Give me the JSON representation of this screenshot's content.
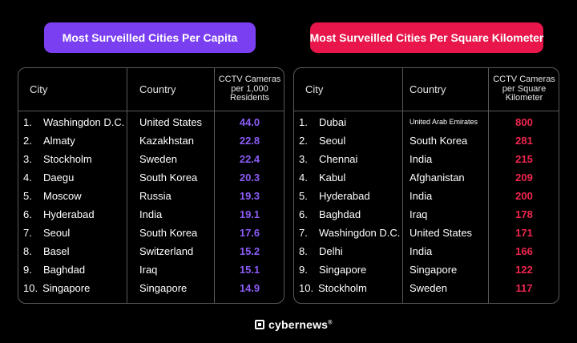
{
  "colors": {
    "accent_purple": "#7b3ff2",
    "accent_red": "#e8164a",
    "value_purple": "#8b5cf6",
    "value_red": "#f0264e",
    "background": "#000000"
  },
  "brand": {
    "name": "cybernews",
    "mark": "®",
    "icon": "cybernews-logo-icon"
  },
  "chart_data": [
    {
      "type": "table",
      "title": "Most Surveilled Cities Per Capita",
      "columns": [
        "City",
        "Country",
        "CCTV Cameras per 1,000 Residents"
      ],
      "rows": [
        {
          "rank": "1.",
          "city": "Washingdon D.C.",
          "country": "United States",
          "value": "44.0"
        },
        {
          "rank": "2.",
          "city": "Almaty",
          "country": "Kazakhstan",
          "value": "22.8"
        },
        {
          "rank": "3.",
          "city": "Stockholm",
          "country": "Sweden",
          "value": "22.4"
        },
        {
          "rank": "4.",
          "city": "Daegu",
          "country": "South Korea",
          "value": "20.3"
        },
        {
          "rank": "5.",
          "city": "Moscow",
          "country": "Russia",
          "value": "19.3"
        },
        {
          "rank": "6.",
          "city": "Hyderabad",
          "country": "India",
          "value": "19.1"
        },
        {
          "rank": "7.",
          "city": "Seoul",
          "country": "South Korea",
          "value": "17.6"
        },
        {
          "rank": "8.",
          "city": "Basel",
          "country": "Switzerland",
          "value": "15.2"
        },
        {
          "rank": "9.",
          "city": "Baghdad",
          "country": "Iraq",
          "value": "15.1"
        },
        {
          "rank": "10.",
          "city": "Singapore",
          "country": "Singapore",
          "value": "14.9"
        }
      ]
    },
    {
      "type": "table",
      "title": "Most Surveilled Cities Per Square Kilometer",
      "columns": [
        "City",
        "Country",
        "CCTV Cameras per Square Kilometer"
      ],
      "rows": [
        {
          "rank": "1.",
          "city": "Dubai",
          "country": "United Arab Emirates",
          "value": "800"
        },
        {
          "rank": "2.",
          "city": "Seoul",
          "country": "South Korea",
          "value": "281"
        },
        {
          "rank": "3.",
          "city": "Chennai",
          "country": "India",
          "value": "215"
        },
        {
          "rank": "4.",
          "city": "Kabul",
          "country": "Afghanistan",
          "value": "209"
        },
        {
          "rank": "5.",
          "city": "Hyderabad",
          "country": "India",
          "value": "200"
        },
        {
          "rank": "6.",
          "city": "Baghdad",
          "country": "Iraq",
          "value": "178"
        },
        {
          "rank": "7.",
          "city": "Washingdon D.C.",
          "country": "United States",
          "value": "171"
        },
        {
          "rank": "8.",
          "city": "Delhi",
          "country": "India",
          "value": "166"
        },
        {
          "rank": "9.",
          "city": "Singapore",
          "country": "Singapore",
          "value": "122"
        },
        {
          "rank": "10.",
          "city": "Stockholm",
          "country": "Sweden",
          "value": "117"
        }
      ]
    }
  ]
}
